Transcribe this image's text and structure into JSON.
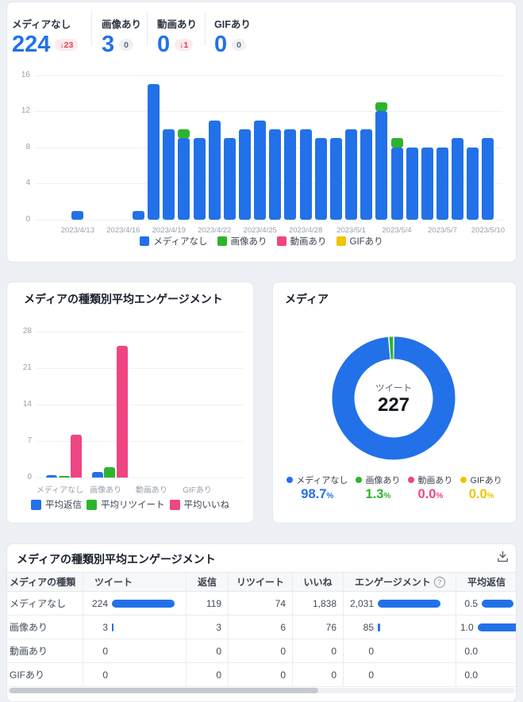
{
  "colors": {
    "blue": "#2271e9",
    "green": "#2db42d",
    "pink": "#ee4583",
    "yellow": "#f1c400"
  },
  "stats": [
    {
      "label": "メディアなし",
      "value": "224",
      "delta": "23",
      "direction": "down"
    },
    {
      "label": "画像あり",
      "value": "3",
      "delta": "0",
      "direction": "flat"
    },
    {
      "label": "動画あり",
      "value": "0",
      "delta": "1",
      "direction": "down"
    },
    {
      "label": "GIFあり",
      "value": "0",
      "delta": "0",
      "direction": "flat"
    }
  ],
  "chart_data": [
    {
      "type": "bar",
      "stacked": true,
      "n": 30,
      "x_tick_labels": [
        "2023/4/13",
        "2023/4/16",
        "2023/4/19",
        "2023/4/22",
        "2023/4/25",
        "2023/4/28",
        "2023/5/1",
        "2023/5/4",
        "2023/5/7",
        "2023/5/10"
      ],
      "tick_start": 2,
      "tick_step": 3,
      "ylim": [
        0,
        16
      ],
      "yticks": [
        0,
        4,
        8,
        12,
        16
      ],
      "series": [
        {
          "name": "メディアなし",
          "color": "blue",
          "values": [
            0,
            0,
            1,
            0,
            0,
            0,
            1,
            15,
            10,
            9,
            9,
            11,
            9,
            10,
            11,
            10,
            10,
            10,
            9,
            9,
            10,
            10,
            12,
            8,
            8,
            8,
            8,
            9,
            8,
            9
          ]
        },
        {
          "name": "画像あり",
          "color": "green",
          "values": [
            0,
            0,
            0,
            0,
            0,
            0,
            0,
            0,
            0,
            1,
            0,
            0,
            0,
            0,
            0,
            0,
            0,
            0,
            0,
            0,
            0,
            0,
            1,
            1,
            0,
            0,
            0,
            0,
            0,
            0
          ]
        },
        {
          "name": "動画あり",
          "color": "pink",
          "values": [
            0,
            0,
            0,
            0,
            0,
            0,
            0,
            0,
            0,
            0,
            0,
            0,
            0,
            0,
            0,
            0,
            0,
            0,
            0,
            0,
            0,
            0,
            0,
            0,
            0,
            0,
            0,
            0,
            0,
            0
          ]
        },
        {
          "name": "GIFあり",
          "color": "yellow",
          "values": [
            0,
            0,
            0,
            0,
            0,
            0,
            0,
            0,
            0,
            0,
            0,
            0,
            0,
            0,
            0,
            0,
            0,
            0,
            0,
            0,
            0,
            0,
            0,
            0,
            0,
            0,
            0,
            0,
            0,
            0
          ]
        }
      ]
    },
    {
      "type": "bar",
      "title": "メディアの種類別平均エンゲージメント",
      "categories": [
        "メディアなし",
        "画像あり",
        "動画あり",
        "GIFあり"
      ],
      "ylim": [
        0,
        28
      ],
      "yticks": [
        0,
        7,
        14,
        21,
        28
      ],
      "series": [
        {
          "name": "平均返信",
          "color": "blue",
          "values": [
            0.5,
            1.0,
            0,
            0
          ]
        },
        {
          "name": "平均リツイート",
          "color": "green",
          "values": [
            0.33,
            2.0,
            0,
            0
          ]
        },
        {
          "name": "平均いいね",
          "color": "pink",
          "values": [
            8.2,
            25.3,
            0,
            0
          ]
        }
      ]
    },
    {
      "type": "donut",
      "title": "メディア",
      "center_label": "ツイート",
      "center_value": "227",
      "slices": [
        {
          "name": "メディアなし",
          "color": "blue",
          "pct": "98.7"
        },
        {
          "name": "画像あり",
          "color": "green",
          "pct": "1.3"
        },
        {
          "name": "動画あり",
          "color": "pink",
          "pct": "0.0"
        },
        {
          "name": "GIFあり",
          "color": "yellow",
          "pct": "0.0"
        }
      ]
    }
  ],
  "table": {
    "title": "メディアの種類別平均エンゲージメント",
    "columns": [
      "メディアの種類",
      "ツイート",
      "返信",
      "リツイート",
      "いいね",
      "エンゲージメント",
      "平均返信"
    ],
    "rows": [
      {
        "label": "メディアなし",
        "tweets": "224",
        "tweets_bar": 1,
        "replies": "119",
        "retweets": "74",
        "likes": "1,838",
        "engagement": "2,031",
        "engagement_bar": 1,
        "avg_reply": "0.5",
        "avg_reply_bar": 0.5
      },
      {
        "label": "画像あり",
        "tweets": "3",
        "tweets_bar": 0.0134,
        "replies": "3",
        "retweets": "6",
        "likes": "76",
        "engagement": "85",
        "engagement_bar": 0.042,
        "avg_reply": "1.0",
        "avg_reply_bar": 1
      },
      {
        "label": "動画あり",
        "tweets": "0",
        "tweets_bar": 0,
        "replies": "0",
        "retweets": "0",
        "likes": "0",
        "engagement": "0",
        "engagement_bar": 0,
        "avg_reply": "0.0",
        "avg_reply_bar": 0
      },
      {
        "label": "GIFあり",
        "tweets": "0",
        "tweets_bar": 0,
        "replies": "0",
        "retweets": "0",
        "likes": "0",
        "engagement": "0",
        "engagement_bar": 0,
        "avg_reply": "0.0",
        "avg_reply_bar": 0
      }
    ]
  }
}
